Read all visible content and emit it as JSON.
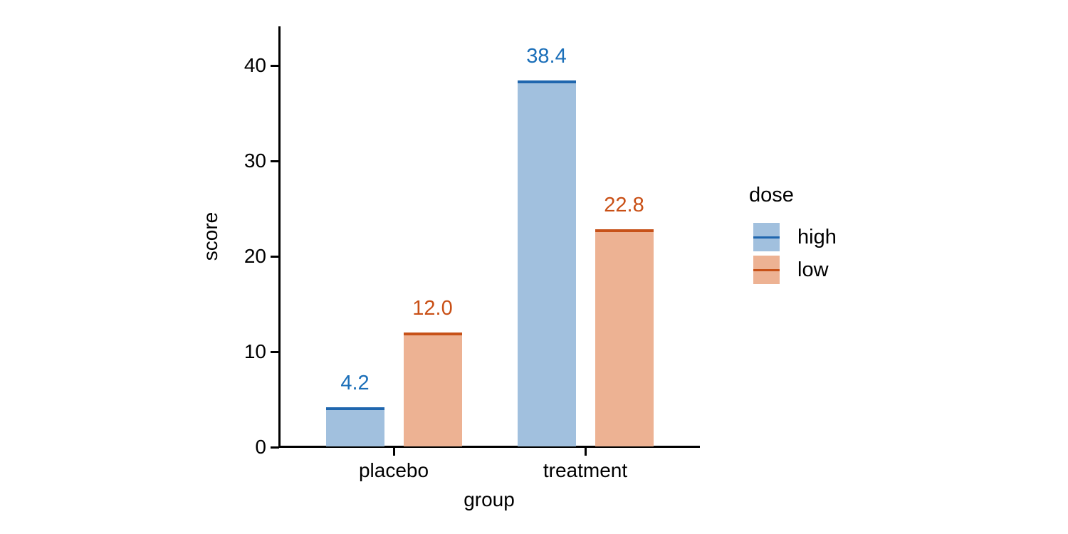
{
  "chart_data": {
    "type": "bar",
    "title": "",
    "xlabel": "group",
    "ylabel": "score",
    "categories": [
      "placebo",
      "treatment"
    ],
    "series": [
      {
        "name": "high",
        "values": [
          4.2,
          38.4
        ],
        "value_labels": [
          "4.2",
          "38.4"
        ],
        "fill_color": "#a1c0de",
        "edge_color": "#1f66ae",
        "label_color": "#1b6fb9"
      },
      {
        "name": "low",
        "values": [
          12.0,
          22.8
        ],
        "value_labels": [
          "12.0",
          "22.8"
        ],
        "fill_color": "#edb293",
        "edge_color": "#c75118",
        "label_color": "#c95016"
      }
    ],
    "y_ticks": [
      0,
      10,
      20,
      30,
      40
    ],
    "ylim": [
      0,
      44
    ],
    "grid": false,
    "legend": {
      "title": "dose",
      "entries": [
        "high",
        "low"
      ],
      "position": "right-of-plot"
    },
    "axis_color": "#000000",
    "text_color": "#000000",
    "background_color": "#ffffff"
  }
}
